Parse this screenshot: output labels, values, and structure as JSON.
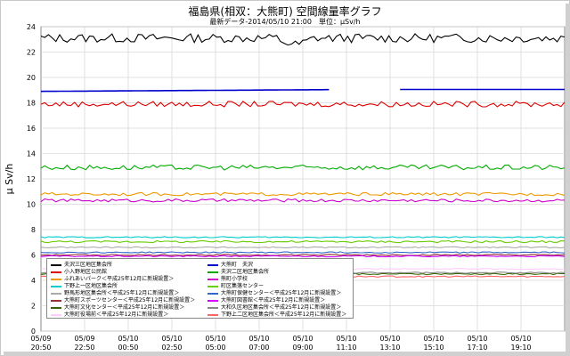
{
  "title": "福島県(相双：大熊町) 空間線量率グラフ",
  "subtitle": "最新データ-2014/05/10 21:00　単位：μSv/h",
  "chart_data": {
    "type": "line",
    "ylabel": "μ Sv/h",
    "xlabel": "",
    "ylim": [
      0,
      24
    ],
    "yticks": [
      0,
      2,
      4,
      6,
      8,
      10,
      12,
      14,
      16,
      18,
      20,
      22,
      24
    ],
    "xticks": [
      {
        "date": "05/09",
        "time": "20:50"
      },
      {
        "date": "05/09",
        "time": "22:50"
      },
      {
        "date": "05/10",
        "time": "00:50"
      },
      {
        "date": "05/10",
        "time": "02:50"
      },
      {
        "date": "05/10",
        "time": "05:00"
      },
      {
        "date": "05/10",
        "time": "07:00"
      },
      {
        "date": "05/10",
        "time": "09:00"
      },
      {
        "date": "05/10",
        "time": "11:10"
      },
      {
        "date": "05/10",
        "time": "13:10"
      },
      {
        "date": "05/10",
        "time": "15:10"
      },
      {
        "date": "05/10",
        "time": "17:10"
      },
      {
        "date": "05/10",
        "time": "19:10"
      }
    ],
    "grid": true,
    "legend_placement": "bottom-left",
    "series": [
      {
        "name": "夫沢三区地区集会所",
        "color": "#000000",
        "level": 23.1,
        "noise": 0.35,
        "legend": true
      },
      {
        "name": "大熊町　夫沢",
        "color": "#0000cc",
        "level": 18.9,
        "noise": 0.03,
        "legend": true,
        "gap": [
          0.55,
          0.68
        ]
      },
      {
        "name": "小入野地区公民館",
        "color": "#dd0000",
        "level": 17.9,
        "noise": 0.22,
        "legend": true
      },
      {
        "name": "夫沢二区地区集会所",
        "color": "#00aa00",
        "level": 12.9,
        "noise": 0.2,
        "legend": true
      },
      {
        "name": "ふれあいパーク＜平成25年12月に新規設置＞",
        "color": "#ee9900",
        "level": 10.8,
        "noise": 0.12,
        "legend": true
      },
      {
        "name": "熊町小学校",
        "color": "#cc00cc",
        "level": 10.3,
        "noise": 0.12,
        "legend": true
      },
      {
        "name": "下野上一区地区集会所",
        "color": "#00cccc",
        "level": 7.4,
        "noise": 0.05,
        "legend": true
      },
      {
        "name": "町区集落センター",
        "color": "#66cc00",
        "level": 7.05,
        "noise": 0.08,
        "legend": true
      },
      {
        "name": "野馬形地区集会所＜平成25年12月に新規設置＞",
        "color": "#aaaaaa",
        "level": 6.6,
        "noise": 0.05,
        "legend": true
      },
      {
        "name": "大熊町保健センター＜平成25年12月に新規設置＞",
        "color": "#3366cc",
        "level": 6.2,
        "noise": 0.05,
        "legend": true
      },
      {
        "name": "大熊町スポーツセンター＜平成25年12月に新規設置＞",
        "color": "#993333",
        "level": 6.0,
        "noise": 0.05,
        "legend": true
      },
      {
        "name": "大熊町図書館＜平成25年12月に新規設置＞",
        "color": "#cc00ff",
        "level": 5.9,
        "noise": 0.05,
        "legend": true
      },
      {
        "name": "大熊町文化センター＜平成25年12月に新規設置＞",
        "color": "#336600",
        "level": 4.5,
        "noise": 0.05,
        "legend": true
      },
      {
        "name": "大和久区地区集会所＜平成25年12月に新規設置＞",
        "color": "#888888",
        "level": 4.6,
        "noise": 0.05,
        "legend": true
      },
      {
        "name": "大熊町役場前＜平成25年12月に新規設置＞",
        "color": "#ffccff",
        "level": 4.9,
        "noise": 0.04,
        "legend": true
      },
      {
        "name": "下野上二区地区集会所＜平成25年12月に新規設置＞",
        "color": "#ff6666",
        "level": 4.3,
        "noise": 0.05,
        "legend": true
      }
    ],
    "legend_rows": [
      [
        "夫沢三区地区集会所",
        "大熊町　夫沢"
      ],
      [
        "小入野地区公民館",
        "夫沢二区地区集会所"
      ],
      [
        "ふれあいパーク＜平成25年12月に新規設置＞",
        "熊町小学校"
      ],
      [
        "下野上一区地区集会所",
        "町区集落センター"
      ],
      [
        "野馬形地区集会所＜平成25年12月に新規設置＞",
        "大熊町保健センター＜平成25年12月に新規設置＞"
      ],
      [
        "大熊町スポーツセンター＜平成25年12月に新規設置＞",
        "大熊町図書館＜平成25年12月に新規設置＞"
      ],
      [
        "大熊町文化センター＜平成25年12月に新規設置＞",
        "大和久区地区集会所＜平成25年12月に新規設置＞"
      ],
      [
        "大熊町役場前＜平成25年12月に新規設置＞",
        "下野上二区地区集会所＜平成25年12月に新規設置＞"
      ]
    ]
  }
}
